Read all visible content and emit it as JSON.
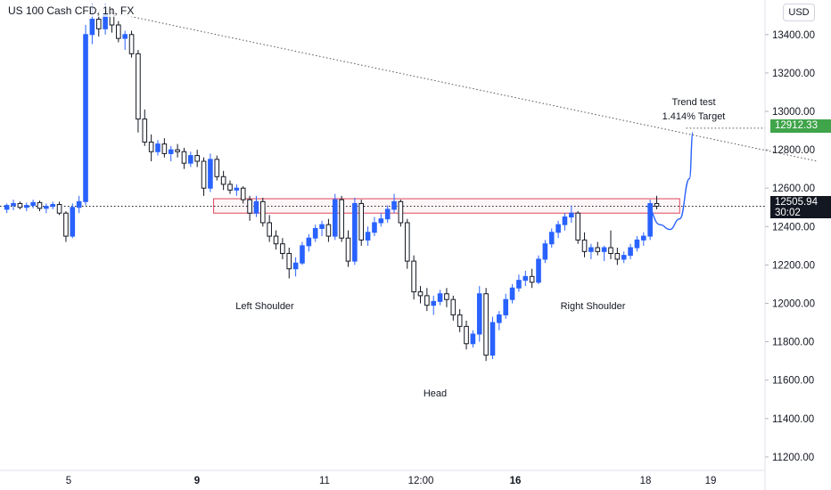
{
  "header": {
    "symbol_title": "US 100 Cash CFD, 1h, FX",
    "currency_label": "USD"
  },
  "annotations": {
    "trend_test": "Trend test",
    "target": "1.414% Target",
    "left_shoulder": "Left Shoulder",
    "head": "Head",
    "right_shoulder": "Right Shoulder"
  },
  "price_labels": {
    "target_price": "12912.33",
    "current_price": "12505.94",
    "countdown": "30:02"
  },
  "colors": {
    "up_candle": "#2962ff",
    "down_candle": "#131722",
    "zone_border": "#e0465c",
    "target_tag": "#3fa44a",
    "current_tag": "#131722",
    "projection": "#2962ff"
  },
  "chart_data": {
    "type": "candlestick",
    "y_axis": {
      "ticks": [
        "13400.00",
        "13200.00",
        "13000.00",
        "12800.00",
        "12600.00",
        "12400.00",
        "12200.00",
        "12000.00",
        "11800.00",
        "11600.00",
        "11400.00",
        "11200.00"
      ],
      "range": [
        11130,
        13580
      ]
    },
    "x_axis": {
      "ticks": [
        "5",
        "9",
        "11",
        "12:00",
        "16",
        "18",
        "19"
      ],
      "bold_ticks": [
        "9",
        "16"
      ],
      "range": [
        0,
        116
      ]
    },
    "overlays": {
      "trend_line": {
        "from": [
          13,
          13540
        ],
        "to": [
          124,
          12740
        ],
        "style": "dotted"
      },
      "neckline_zone": {
        "x_start": 32,
        "x_end": 103,
        "low": 12470,
        "high": 12545
      },
      "target_level": {
        "price": 12912.33,
        "style": "dotted"
      },
      "current_level": {
        "price": 12505.94,
        "style": "dotted"
      },
      "projection_path": [
        [
          98,
          12505
        ],
        [
          100,
          12410
        ],
        [
          101.5,
          12385
        ],
        [
          103,
          12440
        ],
        [
          104.5,
          12650
        ],
        [
          105,
          12890
        ]
      ]
    },
    "candles": [
      [
        12490,
        12520,
        12470,
        12510
      ],
      [
        12510,
        12540,
        12485,
        12520
      ],
      [
        12520,
        12530,
        12490,
        12500
      ],
      [
        12500,
        12525,
        12480,
        12510
      ],
      [
        12510,
        12540,
        12495,
        12525
      ],
      [
        12525,
        12535,
        12480,
        12495
      ],
      [
        12495,
        12520,
        12470,
        12505
      ],
      [
        12505,
        12530,
        12490,
        12515
      ],
      [
        12515,
        12530,
        12460,
        12470
      ],
      [
        12470,
        12480,
        12320,
        12350
      ],
      [
        12350,
        12520,
        12340,
        12500
      ],
      [
        12500,
        12560,
        12470,
        12530
      ],
      [
        12530,
        13450,
        12510,
        13400
      ],
      [
        13400,
        13560,
        13350,
        13480
      ],
      [
        13480,
        13520,
        13390,
        13430
      ],
      [
        13430,
        13560,
        13400,
        13510
      ],
      [
        13510,
        13540,
        13410,
        13450
      ],
      [
        13450,
        13470,
        13360,
        13380
      ],
      [
        13380,
        13420,
        13320,
        13400
      ],
      [
        13400,
        13420,
        13280,
        13300
      ],
      [
        13300,
        13320,
        12890,
        12960
      ],
      [
        12960,
        13010,
        12820,
        12840
      ],
      [
        12840,
        12880,
        12740,
        12790
      ],
      [
        12790,
        12850,
        12770,
        12830
      ],
      [
        12830,
        12860,
        12760,
        12780
      ],
      [
        12780,
        12820,
        12740,
        12800
      ],
      [
        12800,
        12830,
        12760,
        12790
      ],
      [
        12790,
        12810,
        12700,
        12730
      ],
      [
        12730,
        12790,
        12710,
        12770
      ],
      [
        12770,
        12800,
        12710,
        12740
      ],
      [
        12740,
        12760,
        12560,
        12600
      ],
      [
        12600,
        12780,
        12580,
        12750
      ],
      [
        12750,
        12770,
        12640,
        12660
      ],
      [
        12660,
        12690,
        12590,
        12620
      ],
      [
        12620,
        12640,
        12570,
        12590
      ],
      [
        12590,
        12620,
        12560,
        12600
      ],
      [
        12600,
        12610,
        12520,
        12540
      ],
      [
        12540,
        12560,
        12430,
        12470
      ],
      [
        12470,
        12560,
        12450,
        12530
      ],
      [
        12530,
        12550,
        12400,
        12420
      ],
      [
        12420,
        12460,
        12320,
        12350
      ],
      [
        12350,
        12380,
        12280,
        12310
      ],
      [
        12310,
        12340,
        12230,
        12260
      ],
      [
        12260,
        12290,
        12130,
        12180
      ],
      [
        12180,
        12240,
        12140,
        12210
      ],
      [
        12210,
        12320,
        12200,
        12300
      ],
      [
        12300,
        12360,
        12270,
        12340
      ],
      [
        12340,
        12410,
        12320,
        12390
      ],
      [
        12390,
        12430,
        12350,
        12410
      ],
      [
        12410,
        12440,
        12320,
        12350
      ],
      [
        12350,
        12570,
        12330,
        12540
      ],
      [
        12540,
        12560,
        12320,
        12340
      ],
      [
        12340,
        12380,
        12190,
        12220
      ],
      [
        12220,
        12550,
        12200,
        12520
      ],
      [
        12520,
        12540,
        12300,
        12330
      ],
      [
        12330,
        12400,
        12300,
        12370
      ],
      [
        12370,
        12450,
        12350,
        12420
      ],
      [
        12420,
        12470,
        12400,
        12440
      ],
      [
        12440,
        12510,
        12420,
        12490
      ],
      [
        12490,
        12570,
        12470,
        12530
      ],
      [
        12530,
        12540,
        12400,
        12420
      ],
      [
        12420,
        12440,
        12180,
        12220
      ],
      [
        12220,
        12250,
        12020,
        12060
      ],
      [
        12060,
        12090,
        12000,
        12040
      ],
      [
        12040,
        12080,
        11960,
        11990
      ],
      [
        11990,
        12040,
        11940,
        12010
      ],
      [
        12010,
        12070,
        11990,
        12050
      ],
      [
        12050,
        12080,
        11980,
        12020
      ],
      [
        12020,
        12040,
        11910,
        11940
      ],
      [
        11940,
        11970,
        11850,
        11880
      ],
      [
        11880,
        11910,
        11760,
        11790
      ],
      [
        11790,
        11860,
        11770,
        11840
      ],
      [
        11840,
        12090,
        11800,
        12050
      ],
      [
        12050,
        12080,
        11700,
        11730
      ],
      [
        11730,
        11930,
        11710,
        11900
      ],
      [
        11900,
        11960,
        11860,
        11940
      ],
      [
        11940,
        12050,
        11920,
        12020
      ],
      [
        12020,
        12100,
        12000,
        12080
      ],
      [
        12080,
        12150,
        12060,
        12120
      ],
      [
        12120,
        12170,
        12090,
        12140
      ],
      [
        12140,
        12180,
        12080,
        12110
      ],
      [
        12110,
        12250,
        12100,
        12230
      ],
      [
        12230,
        12330,
        12210,
        12310
      ],
      [
        12310,
        12390,
        12290,
        12370
      ],
      [
        12370,
        12430,
        12340,
        12410
      ],
      [
        12410,
        12470,
        12380,
        12450
      ],
      [
        12450,
        12510,
        12420,
        12470
      ],
      [
        12470,
        12480,
        12310,
        12330
      ],
      [
        12330,
        12370,
        12240,
        12270
      ],
      [
        12270,
        12310,
        12230,
        12290
      ],
      [
        12290,
        12320,
        12250,
        12270
      ],
      [
        12270,
        12300,
        12220,
        12290
      ],
      [
        12290,
        12380,
        12230,
        12260
      ],
      [
        12260,
        12290,
        12200,
        12230
      ],
      [
        12230,
        12270,
        12210,
        12250
      ],
      [
        12250,
        12310,
        12230,
        12290
      ],
      [
        12290,
        12350,
        12270,
        12330
      ],
      [
        12330,
        12370,
        12300,
        12350
      ],
      [
        12350,
        12540,
        12330,
        12520
      ],
      [
        12520,
        12560,
        12490,
        12506
      ]
    ]
  }
}
